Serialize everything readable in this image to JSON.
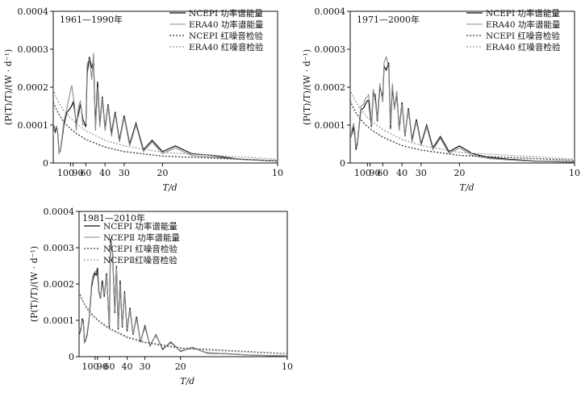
{
  "chart_data": [
    {
      "type": "line",
      "title": "1961—1990年",
      "xlabel": "T/d",
      "ylabel": "(P(T)/T)/(W · d⁻¹)",
      "ylim": [
        0,
        0.0004
      ],
      "yticks": [
        "0",
        "0.0001",
        "0.0002",
        "0.0003",
        "0.0004"
      ],
      "xtick_labels": [
        "100",
        "90",
        "60",
        "40",
        "30",
        "20",
        "10"
      ],
      "xtick_values": [
        100,
        90,
        60,
        40,
        30,
        20,
        10
      ],
      "legend_position": "top-right",
      "series": [
        {
          "name": "NCEPI 功率谱能量",
          "style": "solid-dark",
          "x": [
            400,
            350,
            300,
            250,
            220,
            200,
            180,
            160,
            140,
            120,
            110,
            100,
            95,
            90,
            85,
            80,
            75,
            70,
            65,
            60,
            58,
            55,
            52,
            50,
            48,
            46,
            44,
            42,
            40,
            38,
            36,
            34,
            32,
            30,
            28,
            26,
            24,
            22,
            20,
            18,
            16,
            14,
            12,
            10
          ],
          "y": [
            9e-05,
            9.5e-05,
            8.2e-05,
            9.5e-05,
            7.5e-05,
            2.8e-05,
            3e-05,
            6e-05,
            0.0001,
            0.000132,
            0.000138,
            0.000145,
            0.000152,
            0.00016,
            0.00014,
            0.000105,
            0.000125,
            0.000155,
            0.000115,
            9.5e-05,
            0.000235,
            0.00028,
            0.00025,
            0.00027,
            9.5e-05,
            0.000215,
            0.0001,
            0.000175,
            9e-05,
            0.000155,
            7.8e-05,
            0.000135,
            6e-05,
            0.000125,
            5e-05,
            0.000105,
            3.5e-05,
            6e-05,
            3e-05,
            4.5e-05,
            2.5e-05,
            2e-05,
            1e-05,
            5e-06
          ]
        },
        {
          "name": "ERA40 功率谱能量",
          "style": "solid-gray",
          "x": [
            400,
            350,
            300,
            250,
            220,
            200,
            180,
            160,
            140,
            120,
            110,
            100,
            95,
            90,
            85,
            80,
            75,
            70,
            65,
            60,
            58,
            55,
            52,
            50,
            48,
            46,
            44,
            42,
            40,
            38,
            36,
            34,
            32,
            30,
            28,
            26,
            24,
            22,
            20,
            18,
            16,
            14,
            12,
            10
          ],
          "y": [
            7.5e-05,
            9.2e-05,
            8.8e-05,
            9.8e-05,
            7e-05,
            2.5e-05,
            3.2e-05,
            6.5e-05,
            0.00011,
            0.00014,
            0.000165,
            0.00019,
            0.000205,
            0.00018,
            0.00015,
            8.5e-05,
            0.000145,
            0.000165,
            0.0001,
            0.000105,
            0.00026,
            0.000275,
            0.00022,
            0.00029,
            8.5e-05,
            0.0002,
            9.5e-05,
            0.00017,
            8.5e-05,
            0.00015,
            7e-05,
            0.00013,
            5.5e-05,
            0.00012,
            4.5e-05,
            0.0001,
            3e-05,
            5.5e-05,
            2.5e-05,
            4e-05,
            2e-05,
            1.5e-05,
            1e-05,
            5e-06
          ]
        },
        {
          "name": "NCEPI 红噪音检验",
          "style": "dotted-dark",
          "x": [
            400,
            300,
            200,
            150,
            120,
            100,
            80,
            60,
            40,
            30,
            20,
            10
          ],
          "y": [
            0.00016,
            0.000148,
            0.000128,
            0.000112,
            0.0001,
            9e-05,
            7.8e-05,
            6.2e-05,
            4.2e-05,
            3e-05,
            1.8e-05,
            6e-06
          ]
        },
        {
          "name": "ERA40 红噪音检验",
          "style": "dotted-gray",
          "x": [
            400,
            300,
            200,
            150,
            120,
            100,
            80,
            60,
            40,
            30,
            20,
            10
          ],
          "y": [
            0.000195,
            0.00018,
            0.000158,
            0.000142,
            0.00013,
            0.000118,
            0.000104,
            8.5e-05,
            6e-05,
            4.5e-05,
            2.8e-05,
            1e-05
          ]
        }
      ]
    },
    {
      "type": "line",
      "title": "1971—2000年",
      "xlabel": "T/d",
      "ylabel": "(P(T)/T)/(W · d⁻¹)",
      "ylim": [
        0,
        0.0004
      ],
      "yticks": [
        "0",
        "0.0001",
        "0.0002",
        "0.0003",
        "0.0004"
      ],
      "xtick_labels": [
        "100",
        "90",
        "60",
        "40",
        "30",
        "20",
        "10"
      ],
      "xtick_values": [
        100,
        90,
        60,
        40,
        30,
        20,
        10
      ],
      "legend_position": "top-right",
      "series": [
        {
          "name": "NCEPI 功率谱能量",
          "style": "solid-dark",
          "x": [
            400,
            350,
            300,
            250,
            220,
            200,
            180,
            160,
            140,
            120,
            110,
            100,
            95,
            90,
            85,
            80,
            75,
            70,
            65,
            60,
            58,
            55,
            52,
            50,
            48,
            46,
            44,
            42,
            40,
            38,
            36,
            34,
            32,
            30,
            28,
            26,
            24,
            22,
            20,
            18,
            16,
            14,
            12,
            10
          ],
          "y": [
            7e-05,
            7e-05,
            8e-05,
            9.5e-05,
            7e-05,
            3.5e-05,
            5e-05,
            9e-05,
            0.00014,
            0.000145,
            0.000155,
            0.000165,
            0.000165,
            0.00013,
            9.5e-05,
            0.000185,
            0.00018,
            0.00011,
            0.0002,
            0.000175,
            0.000255,
            0.000245,
            0.000265,
            9e-05,
            0.0002,
            0.000145,
            0.00018,
            9e-05,
            0.00016,
            7e-05,
            0.000145,
            6e-05,
            0.000115,
            5e-05,
            0.0001,
            4e-05,
            7e-05,
            3e-05,
            4.5e-05,
            2.5e-05,
            1.5e-05,
            1e-05,
            5e-06,
            3e-06
          ]
        },
        {
          "name": "ERA40 功率谱能量",
          "style": "solid-gray",
          "x": [
            400,
            350,
            300,
            250,
            220,
            200,
            180,
            160,
            140,
            120,
            110,
            100,
            95,
            90,
            85,
            80,
            75,
            70,
            65,
            60,
            58,
            55,
            52,
            50,
            48,
            46,
            44,
            42,
            40,
            38,
            36,
            34,
            32,
            30,
            28,
            26,
            24,
            22,
            20,
            18,
            16,
            14,
            12,
            10
          ],
          "y": [
            7e-05,
            6.8e-05,
            9e-05,
            0.000105,
            8e-05,
            4e-05,
            5.5e-05,
            9.5e-05,
            0.00015,
            0.000155,
            0.00017,
            0.000175,
            0.00018,
            0.000145,
            0.0001,
            0.000195,
            0.000165,
            0.000115,
            0.00021,
            0.00016,
            0.000265,
            0.00028,
            0.00025,
            0.0001,
            0.00021,
            0.00014,
            0.00019,
            8.5e-05,
            0.000155,
            7e-05,
            0.00014,
            5.5e-05,
            0.00011,
            4.5e-05,
            9.5e-05,
            3.5e-05,
            6.5e-05,
            2.5e-05,
            4e-05,
            2e-05,
            1.2e-05,
            8e-06,
            4e-06,
            2e-06
          ]
        },
        {
          "name": "NCEPI 红噪音检验",
          "style": "dotted-dark",
          "x": [
            400,
            300,
            200,
            150,
            120,
            100,
            80,
            60,
            40,
            30,
            20,
            10
          ],
          "y": [
            0.000165,
            0.000152,
            0.000132,
            0.000118,
            0.000106,
            9.6e-05,
            8.4e-05,
            6.8e-05,
            4.6e-05,
            3.4e-05,
            2e-05,
            7e-06
          ]
        },
        {
          "name": "ERA40 红噪音检验",
          "style": "dotted-gray",
          "x": [
            400,
            300,
            200,
            150,
            120,
            100,
            80,
            60,
            40,
            30,
            20,
            10
          ],
          "y": [
            0.000195,
            0.00018,
            0.00016,
            0.000145,
            0.000132,
            0.00012,
            0.000106,
            8.8e-05,
            6.2e-05,
            4.6e-05,
            2.8e-05,
            1e-05
          ]
        }
      ]
    },
    {
      "type": "line",
      "title": "1981—2010年",
      "xlabel": "T/d",
      "ylabel": "(P(T)/T)/(W · d⁻¹)",
      "ylim": [
        0,
        0.0004
      ],
      "yticks": [
        "0",
        "0.0001",
        "0.0002",
        "0.0003",
        "0.0004"
      ],
      "xtick_labels": [
        "100",
        "90",
        "60",
        "40",
        "30",
        "20",
        "10"
      ],
      "xtick_values": [
        100,
        90,
        60,
        40,
        30,
        20,
        10
      ],
      "legend_position": "top-left",
      "series": [
        {
          "name": "NCEPI 功率谱能量",
          "style": "solid-dark",
          "x": [
            400,
            350,
            300,
            250,
            220,
            200,
            180,
            160,
            140,
            120,
            110,
            100,
            95,
            90,
            85,
            80,
            75,
            70,
            65,
            60,
            58,
            55,
            52,
            50,
            48,
            46,
            44,
            42,
            40,
            38,
            36,
            34,
            32,
            30,
            28,
            26,
            24,
            22,
            20,
            18,
            16,
            14,
            12,
            10
          ],
          "y": [
            7e-05,
            6.5e-05,
            7.5e-05,
            0.000105,
            9.5e-05,
            4e-05,
            4.5e-05,
            6e-05,
            0.0001,
            0.00019,
            0.000215,
            0.00023,
            0.000225,
            0.000245,
            0.00018,
            0.00016,
            0.00021,
            0.000165,
            0.00023,
            8e-05,
            0.000325,
            0.000285,
            0.00012,
            0.00025,
            7.5e-05,
            0.00021,
            8e-05,
            0.00018,
            7e-05,
            0.000135,
            6e-05,
            0.00011,
            4e-05,
            8.5e-05,
            3e-05,
            6e-05,
            2e-05,
            4e-05,
            1.5e-05,
            2.5e-05,
            1e-05,
            8e-06,
            4e-06,
            2e-06
          ]
        },
        {
          "name": "NCEPⅡ 功率谱能量",
          "style": "solid-gray",
          "x": [
            400,
            350,
            300,
            250,
            220,
            200,
            180,
            160,
            140,
            120,
            110,
            100,
            95,
            90,
            85,
            80,
            75,
            70,
            65,
            60,
            58,
            55,
            52,
            50,
            48,
            46,
            44,
            42,
            40,
            38,
            36,
            34,
            32,
            30,
            28,
            26,
            24,
            22,
            20,
            18,
            16,
            14,
            12,
            10
          ],
          "y": [
            7.5e-05,
            6.8e-05,
            8e-05,
            0.0001,
            9e-05,
            4.2e-05,
            4.8e-05,
            6.5e-05,
            0.000105,
            0.0002,
            0.000225,
            0.000235,
            0.000235,
            0.000225,
            0.000175,
            0.000165,
            0.0002,
            0.00017,
            0.000225,
            8.5e-05,
            0.000315,
            0.00029,
            0.000125,
            0.000245,
            8e-05,
            0.0002,
            8.5e-05,
            0.000175,
            7.5e-05,
            0.00013,
            6.2e-05,
            0.000105,
            4.2e-05,
            8e-05,
            3.2e-05,
            5.8e-05,
            2.2e-05,
            3.8e-05,
            1.6e-05,
            2.4e-05,
            1.1e-05,
            8e-06,
            4e-06,
            2e-06
          ]
        },
        {
          "name": "NCEPI 红噪音检验",
          "style": "dotted-dark",
          "x": [
            400,
            300,
            200,
            150,
            120,
            100,
            80,
            60,
            40,
            30,
            20,
            10
          ],
          "y": [
            0.00018,
            0.000165,
            0.000145,
            0.00013,
            0.000118,
            0.000108,
            9.5e-05,
            7.8e-05,
            5.4e-05,
            4e-05,
            2.4e-05,
            8e-06
          ]
        },
        {
          "name": "NCEPⅡ红噪音检验",
          "style": "dotted-gray",
          "x": [
            400,
            300,
            200,
            150,
            120,
            100,
            80,
            60,
            40,
            30,
            20,
            10
          ],
          "y": [
            0.000178,
            0.000163,
            0.000143,
            0.000128,
            0.000116,
            0.000106,
            9.3e-05,
            7.6e-05,
            5.2e-05,
            3.8e-05,
            2.2e-05,
            7e-06
          ]
        }
      ]
    }
  ],
  "colors": {
    "solid-dark": "#111111",
    "solid-gray": "#8a8a8a",
    "dotted-dark": "#333333",
    "dotted-gray": "#9a9a9a"
  }
}
